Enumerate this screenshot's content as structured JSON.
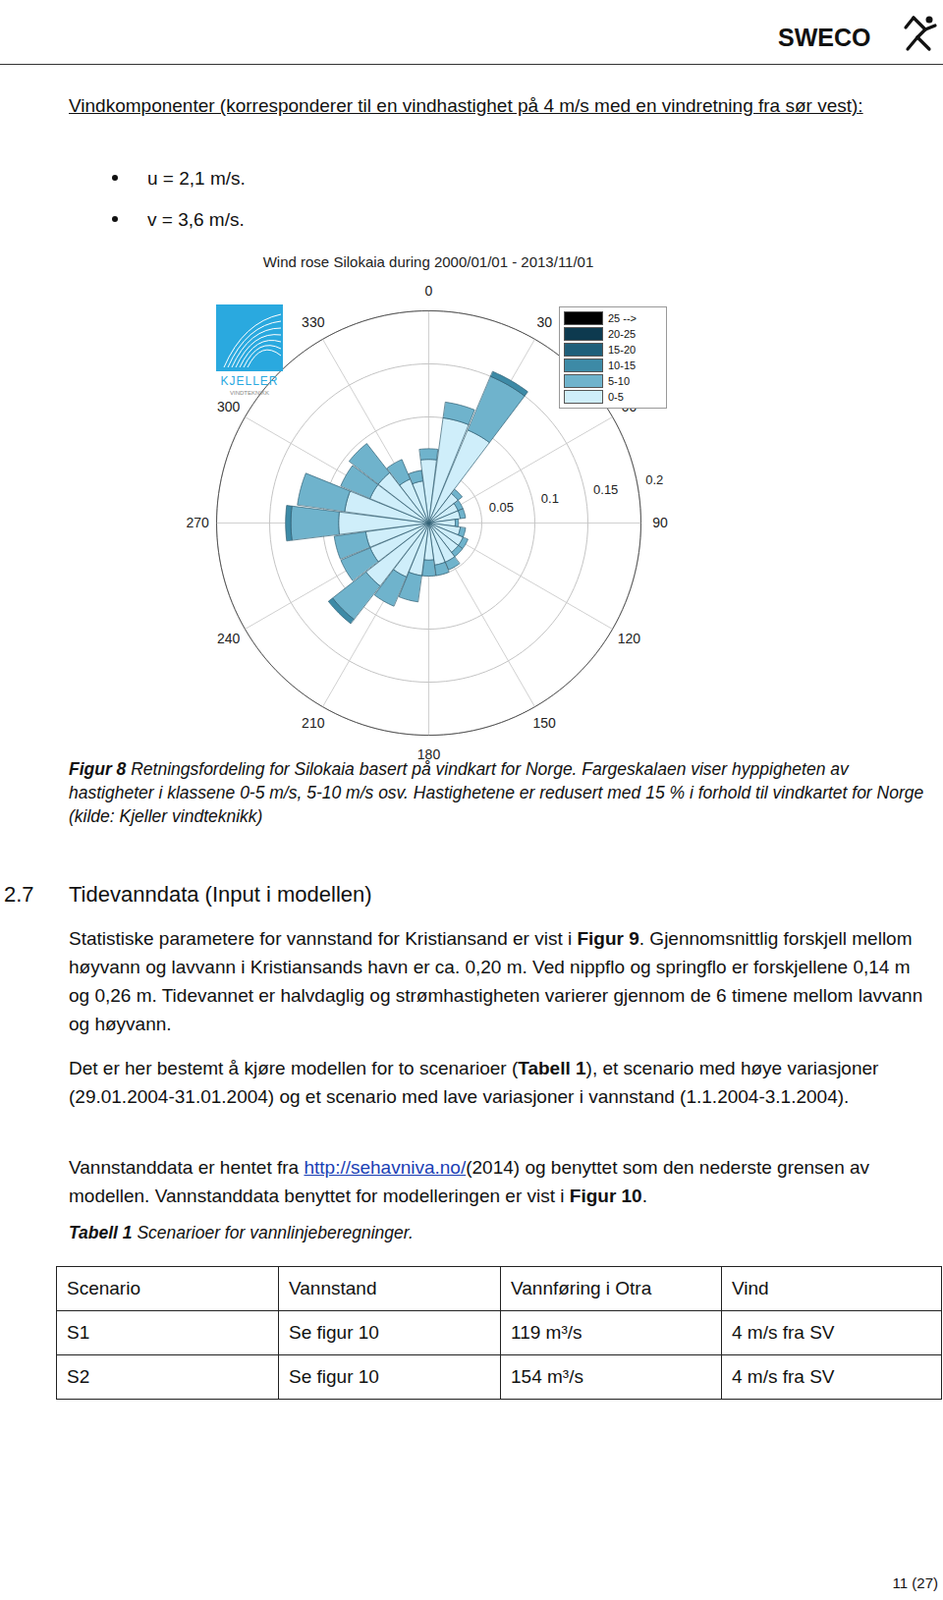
{
  "header": {
    "logo": "SWECO"
  },
  "intro": {
    "heading": "Vindkomponenter (korresponderer til en vindhastighet på 4 m/s med en vindretning fra sør vest):",
    "bullets": [
      "u = 2,1 m/s.",
      "v = 3,6 m/s."
    ]
  },
  "figure": {
    "logo": {
      "name": "KJELLER",
      "sub": "VINDTEKNIKK"
    },
    "caption": [
      {
        "text": "Figur 8",
        "bold": true
      },
      {
        "text": " Retningsfordeling for Silokaia basert på vindkart for Norge. Fargeskalaen viser hyppigheten av hastigheter i klassene 0-5 m/s, 5-10 m/s osv. Hastighetene er redusert med 15 % i forhold til vindkartet for Norge (kilde: Kjeller vindteknikk)"
      }
    ]
  },
  "chart_data": {
    "type": "windrose",
    "title": "Wind rose Silokaia during 2000/01/01 - 2013/11/01",
    "directions": [
      0,
      15,
      30,
      45,
      60,
      75,
      90,
      105,
      120,
      135,
      150,
      165,
      180,
      195,
      210,
      225,
      240,
      255,
      270,
      285,
      300,
      315,
      330,
      345
    ],
    "series": [
      {
        "name": "0-5",
        "color": "#cfeefa",
        "values": [
          0.06,
          0.1,
          0.095,
          0.035,
          0.03,
          0.03,
          0.025,
          0.03,
          0.035,
          0.035,
          0.04,
          0.04,
          0.035,
          0.05,
          0.055,
          0.075,
          0.06,
          0.06,
          0.085,
          0.08,
          0.06,
          0.06,
          0.045,
          0.04
        ]
      },
      {
        "name": "5-10",
        "color": "#6fb3cc",
        "values": [
          0.01,
          0.015,
          0.055,
          0.005,
          0.005,
          0.005,
          0.003,
          0.005,
          0.005,
          0.005,
          0.008,
          0.01,
          0.015,
          0.025,
          0.03,
          0.04,
          0.03,
          0.03,
          0.045,
          0.045,
          0.03,
          0.035,
          0.02,
          0.01
        ]
      },
      {
        "name": "10-15",
        "color": "#3d8aa6",
        "values": [
          0,
          0,
          0.005,
          0,
          0,
          0,
          0,
          0,
          0,
          0,
          0,
          0,
          0,
          0,
          0,
          0.005,
          0,
          0,
          0.005,
          0,
          0,
          0,
          0,
          0
        ]
      },
      {
        "name": "15-20",
        "color": "#1f5f7a",
        "values": [
          0,
          0,
          0,
          0,
          0,
          0,
          0,
          0,
          0,
          0,
          0,
          0,
          0,
          0,
          0,
          0,
          0,
          0,
          0,
          0,
          0,
          0,
          0,
          0
        ]
      },
      {
        "name": "20-25",
        "color": "#0d3a4f",
        "values": [
          0,
          0,
          0,
          0,
          0,
          0,
          0,
          0,
          0,
          0,
          0,
          0,
          0,
          0,
          0,
          0,
          0,
          0,
          0,
          0,
          0,
          0,
          0,
          0
        ]
      },
      {
        "name": "25 -->",
        "color": "#000000",
        "values": [
          0,
          0,
          0,
          0,
          0,
          0,
          0,
          0,
          0,
          0,
          0,
          0,
          0,
          0,
          0,
          0,
          0,
          0,
          0,
          0,
          0,
          0,
          0,
          0
        ]
      }
    ],
    "rlim": [
      0,
      0.2
    ],
    "rticks": [
      0.05,
      0.1,
      0.15,
      0.2
    ],
    "angle_ticks": [
      0,
      30,
      60,
      90,
      120,
      150,
      180,
      210,
      240,
      270,
      300,
      330
    ],
    "stacked": true,
    "grid": true,
    "legend": "top right"
  },
  "section": {
    "number": "2.7",
    "title": "Tidevanndata (Input i modellen)"
  },
  "paragraphs": [
    [
      {
        "text": "Statistiske parametere for vannstand for Kristiansand er vist i "
      },
      {
        "text": "Figur 9",
        "bold": true
      },
      {
        "text": ". Gjennomsnittlig forskjell mellom høyvann og lavvann i Kristiansands havn er ca. 0,20 m. Ved nippflo og springflo er forskjellene 0,14 m og 0,26 m. Tidevannet er halvdaglig og strømhastigheten varierer gjennom de 6 timene mellom lavvann og høyvann."
      }
    ],
    [
      {
        "text": "Det er her bestemt å kjøre modellen for to scenarioer ("
      },
      {
        "text": "Tabell 1",
        "bold": true
      },
      {
        "text": "), et scenario med høye variasjoner (29.01.2004-31.01.2004) og et scenario med lave variasjoner i vannstand (1.1.2004-3.1.2004)."
      }
    ],
    [
      {
        "text": "Vannstanddata er hentet fra "
      },
      {
        "text": "http://sehavniva.no/",
        "link": true
      },
      {
        "text": "(2014) og benyttet som den nederste grensen av modellen. Vannstanddata benyttet for modelleringen er vist i "
      },
      {
        "text": "Figur 10",
        "bold": true
      },
      {
        "text": "."
      }
    ]
  ],
  "table": {
    "caption": [
      {
        "text": "Tabell 1",
        "bold": true
      },
      {
        "text": " Scenarioer for vannlinjeberegninger."
      }
    ],
    "header": [
      "Scenario",
      "Vannstand",
      "Vannføring i Otra",
      "Vind"
    ],
    "rows": [
      [
        "S1",
        "Se figur 10",
        "119 m³/s",
        "4 m/s fra SV"
      ],
      [
        "S2",
        "Se figur 10",
        "154 m³/s",
        "4 m/s fra SV"
      ]
    ]
  },
  "page_number": "11 (27)"
}
